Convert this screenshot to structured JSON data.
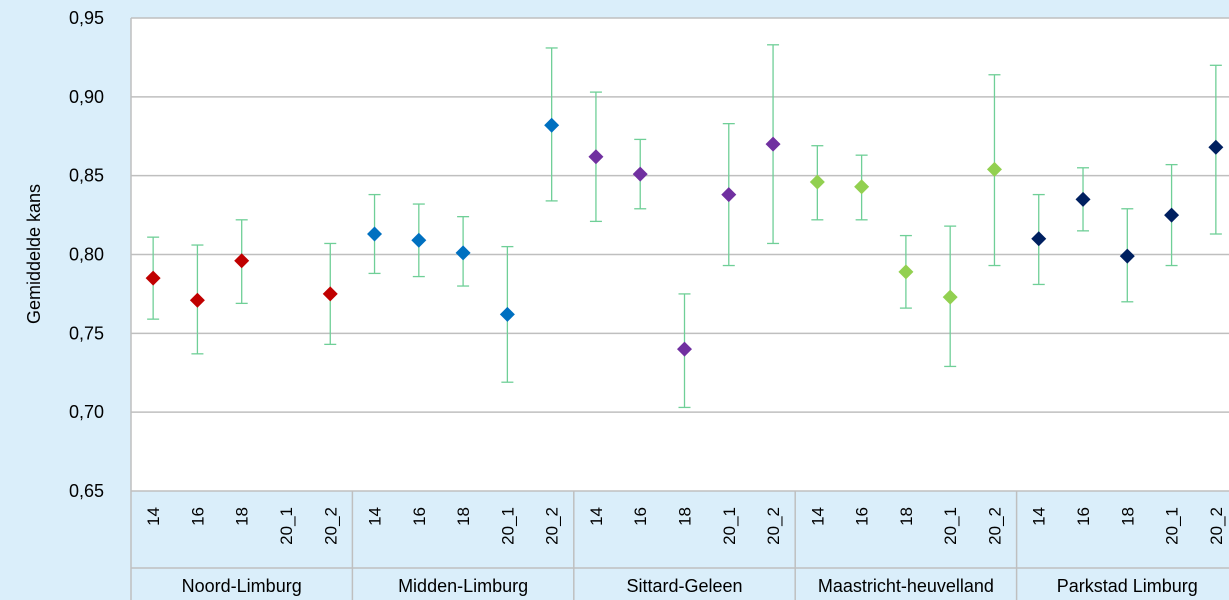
{
  "chart_data": {
    "type": "scatter",
    "title": "",
    "ylabel": "Gemiddelde kans",
    "xlabel": "",
    "ylim": [
      0.65,
      0.95
    ],
    "y_ticks": [
      "0,65",
      "0,70",
      "0,75",
      "0,80",
      "0,85",
      "0,90",
      "0,95"
    ],
    "y_tick_values": [
      0.65,
      0.7,
      0.75,
      0.8,
      0.85,
      0.9,
      0.95
    ],
    "grid": true,
    "error_bar_color": "#6fcf97",
    "groups": [
      {
        "name": "Noord-Limburg",
        "color": "#c00000",
        "categories": [
          "14",
          "16",
          "18",
          "20_1",
          "20_2"
        ],
        "values": [
          0.785,
          0.771,
          0.796,
          null,
          0.775
        ],
        "lower": [
          0.759,
          0.737,
          0.769,
          null,
          0.743
        ],
        "upper": [
          0.811,
          0.806,
          0.822,
          null,
          0.807
        ]
      },
      {
        "name": "Midden-Limburg",
        "color": "#0070c0",
        "categories": [
          "14",
          "16",
          "18",
          "20_1",
          "20_2"
        ],
        "values": [
          0.813,
          0.809,
          0.801,
          0.762,
          0.882
        ],
        "lower": [
          0.788,
          0.786,
          0.78,
          0.719,
          0.834
        ],
        "upper": [
          0.838,
          0.832,
          0.824,
          0.805,
          0.931
        ]
      },
      {
        "name": "Sittard-Geleen",
        "color": "#7030a0",
        "categories": [
          "14",
          "16",
          "18",
          "20_1",
          "20_2"
        ],
        "values": [
          0.862,
          0.851,
          0.74,
          0.838,
          0.87
        ],
        "lower": [
          0.821,
          0.829,
          0.703,
          0.793,
          0.807
        ],
        "upper": [
          0.903,
          0.873,
          0.775,
          0.883,
          0.933
        ]
      },
      {
        "name": "Maastricht-heuvelland",
        "color": "#92d050",
        "categories": [
          "14",
          "16",
          "18",
          "20_1",
          "20_2"
        ],
        "values": [
          0.846,
          0.843,
          0.789,
          0.773,
          0.854
        ],
        "lower": [
          0.822,
          0.822,
          0.766,
          0.729,
          0.793
        ],
        "upper": [
          0.869,
          0.863,
          0.812,
          0.818,
          0.914
        ]
      },
      {
        "name": "Parkstad Limburg",
        "color": "#002060",
        "categories": [
          "14",
          "16",
          "18",
          "20_1",
          "20_2"
        ],
        "values": [
          0.81,
          0.835,
          0.799,
          0.825,
          0.868
        ],
        "lower": [
          0.781,
          0.815,
          0.77,
          0.793,
          0.813
        ],
        "upper": [
          0.838,
          0.855,
          0.829,
          0.857,
          0.92
        ]
      }
    ]
  }
}
